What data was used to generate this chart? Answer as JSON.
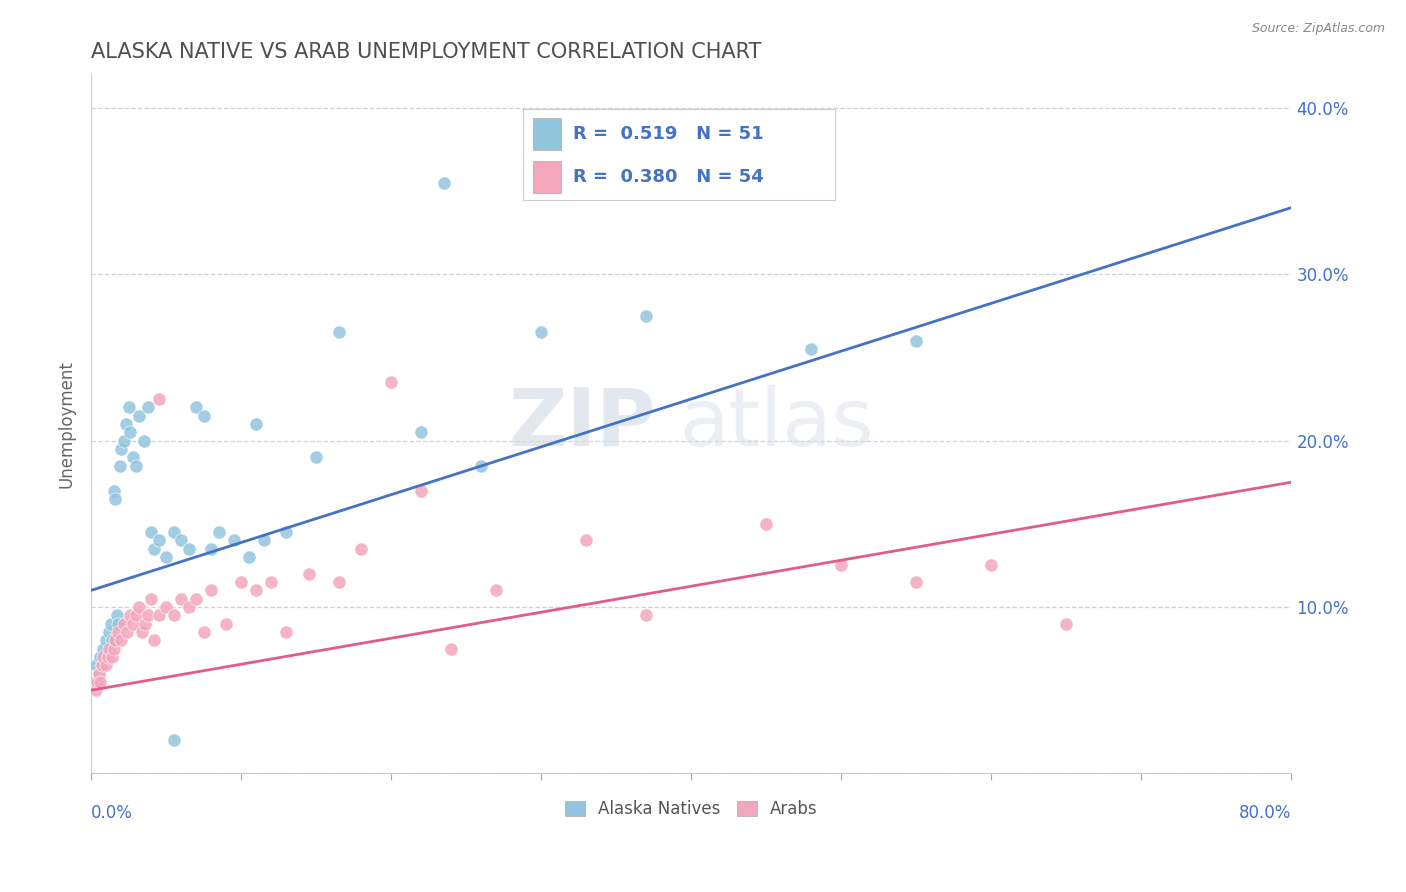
{
  "title": "ALASKA NATIVE VS ARAB UNEMPLOYMENT CORRELATION CHART",
  "source": "Source: ZipAtlas.com",
  "ylabel": "Unemployment",
  "watermark_zip": "ZIP",
  "watermark_atlas": "atlas",
  "legend_r1_text": "R =  0.519   N = 51",
  "legend_r2_text": "R =  0.380   N = 54",
  "blue_scatter_color": "#92c5de",
  "pink_scatter_color": "#f4a6bc",
  "line_blue": "#4472c4",
  "line_pink": "#e05c8a",
  "xmin": 0.0,
  "xmax": 80.0,
  "ymin": 0.0,
  "ymax": 42.0,
  "ytick_vals": [
    0,
    10,
    20,
    30,
    40
  ],
  "ytick_labels_right": [
    "",
    "10.0%",
    "20.0%",
    "30.0%",
    "40.0%"
  ],
  "xtick_label_left": "0.0%",
  "xtick_label_right": "80.0%",
  "blue_line_x0": 0.0,
  "blue_line_y0": 11.0,
  "blue_line_x1": 80.0,
  "blue_line_y1": 34.0,
  "pink_line_x0": 0.0,
  "pink_line_y0": 5.0,
  "pink_line_x1": 80.0,
  "pink_line_y1": 17.5,
  "axis_color": "#4472c4",
  "grid_color": "#c8d0dc",
  "title_color": "#505050",
  "background": "#ffffff",
  "alaska_natives": [
    [
      0.3,
      6.5
    ],
    [
      0.4,
      5.5
    ],
    [
      0.5,
      6.0
    ],
    [
      0.6,
      7.0
    ],
    [
      0.7,
      6.5
    ],
    [
      0.8,
      7.5
    ],
    [
      1.0,
      8.0
    ],
    [
      1.2,
      8.5
    ],
    [
      1.3,
      9.0
    ],
    [
      1.4,
      8.0
    ],
    [
      1.5,
      17.0
    ],
    [
      1.6,
      16.5
    ],
    [
      1.7,
      9.5
    ],
    [
      1.8,
      9.0
    ],
    [
      1.9,
      18.5
    ],
    [
      2.0,
      19.5
    ],
    [
      2.2,
      20.0
    ],
    [
      2.3,
      21.0
    ],
    [
      2.5,
      22.0
    ],
    [
      2.6,
      20.5
    ],
    [
      2.8,
      19.0
    ],
    [
      3.0,
      18.5
    ],
    [
      3.2,
      21.5
    ],
    [
      3.5,
      20.0
    ],
    [
      3.8,
      22.0
    ],
    [
      4.0,
      14.5
    ],
    [
      4.2,
      13.5
    ],
    [
      4.5,
      14.0
    ],
    [
      5.0,
      13.0
    ],
    [
      5.5,
      14.5
    ],
    [
      6.0,
      14.0
    ],
    [
      6.5,
      13.5
    ],
    [
      7.0,
      22.0
    ],
    [
      7.5,
      21.5
    ],
    [
      8.0,
      13.5
    ],
    [
      8.5,
      14.5
    ],
    [
      9.5,
      14.0
    ],
    [
      10.5,
      13.0
    ],
    [
      11.0,
      21.0
    ],
    [
      11.5,
      14.0
    ],
    [
      13.0,
      14.5
    ],
    [
      15.0,
      19.0
    ],
    [
      16.5,
      26.5
    ],
    [
      22.0,
      20.5
    ],
    [
      23.5,
      35.5
    ],
    [
      26.0,
      18.5
    ],
    [
      30.0,
      26.5
    ],
    [
      37.0,
      27.5
    ],
    [
      48.0,
      25.5
    ],
    [
      55.0,
      26.0
    ],
    [
      5.5,
      2.0
    ]
  ],
  "arabs": [
    [
      0.2,
      5.5
    ],
    [
      0.3,
      5.0
    ],
    [
      0.4,
      5.5
    ],
    [
      0.5,
      6.0
    ],
    [
      0.6,
      5.5
    ],
    [
      0.7,
      6.5
    ],
    [
      0.8,
      7.0
    ],
    [
      1.0,
      6.5
    ],
    [
      1.1,
      7.0
    ],
    [
      1.2,
      7.5
    ],
    [
      1.4,
      7.0
    ],
    [
      1.5,
      7.5
    ],
    [
      1.6,
      8.0
    ],
    [
      1.8,
      8.5
    ],
    [
      2.0,
      8.0
    ],
    [
      2.2,
      9.0
    ],
    [
      2.4,
      8.5
    ],
    [
      2.6,
      9.5
    ],
    [
      2.8,
      9.0
    ],
    [
      3.0,
      9.5
    ],
    [
      3.2,
      10.0
    ],
    [
      3.4,
      8.5
    ],
    [
      3.6,
      9.0
    ],
    [
      3.8,
      9.5
    ],
    [
      4.0,
      10.5
    ],
    [
      4.2,
      8.0
    ],
    [
      4.5,
      9.5
    ],
    [
      5.0,
      10.0
    ],
    [
      5.5,
      9.5
    ],
    [
      6.0,
      10.5
    ],
    [
      6.5,
      10.0
    ],
    [
      7.0,
      10.5
    ],
    [
      7.5,
      8.5
    ],
    [
      8.0,
      11.0
    ],
    [
      9.0,
      9.0
    ],
    [
      10.0,
      11.5
    ],
    [
      11.0,
      11.0
    ],
    [
      12.0,
      11.5
    ],
    [
      13.0,
      8.5
    ],
    [
      14.5,
      12.0
    ],
    [
      16.5,
      11.5
    ],
    [
      18.0,
      13.5
    ],
    [
      20.0,
      23.5
    ],
    [
      22.0,
      17.0
    ],
    [
      24.0,
      7.5
    ],
    [
      27.0,
      11.0
    ],
    [
      33.0,
      14.0
    ],
    [
      37.0,
      9.5
    ],
    [
      45.0,
      15.0
    ],
    [
      50.0,
      12.5
    ],
    [
      55.0,
      11.5
    ],
    [
      60.0,
      12.5
    ],
    [
      65.0,
      9.0
    ],
    [
      4.5,
      22.5
    ]
  ]
}
